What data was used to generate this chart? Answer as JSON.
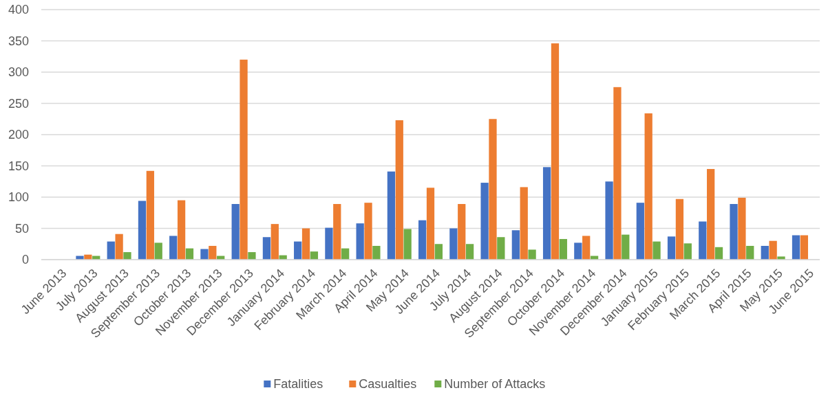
{
  "chart_data": {
    "type": "bar",
    "categories": [
      "June 2013",
      "July 2013",
      "August 2013",
      "September 2013",
      "October 2013",
      "November 2013",
      "December 2013",
      "January 2014",
      "February 2014",
      "March 2014",
      "April 2014",
      "May 2014",
      "June 2014",
      "July 2014",
      "August 2014",
      "September 2014",
      "October 2014",
      "November 2014",
      "December 2014",
      "January 2015",
      "February 2015",
      "March 2015",
      "April 2015",
      "May 2015",
      "June 2015"
    ],
    "series": [
      {
        "name": "Fatalities",
        "color": "#4472c4",
        "values": [
          0,
          6,
          29,
          94,
          38,
          17,
          89,
          36,
          29,
          51,
          58,
          141,
          63,
          50,
          123,
          47,
          148,
          27,
          125,
          91,
          37,
          61,
          89,
          22,
          39
        ]
      },
      {
        "name": "Casualties",
        "color": "#ed7d31",
        "values": [
          0,
          8,
          41,
          142,
          95,
          22,
          320,
          57,
          50,
          89,
          91,
          223,
          115,
          89,
          225,
          116,
          346,
          38,
          276,
          234,
          97,
          145,
          99,
          30,
          39
        ]
      },
      {
        "name": "Number of Attacks",
        "color": "#70ad47",
        "values": [
          0,
          6,
          12,
          27,
          18,
          6,
          12,
          7,
          13,
          18,
          22,
          49,
          25,
          25,
          36,
          16,
          33,
          6,
          40,
          29,
          26,
          20,
          22,
          5,
          0
        ]
      }
    ],
    "ylim": [
      0,
      400
    ],
    "yticks": [
      0,
      50,
      100,
      150,
      200,
      250,
      300,
      350,
      400
    ],
    "grid": "y",
    "legend": "bottom"
  }
}
